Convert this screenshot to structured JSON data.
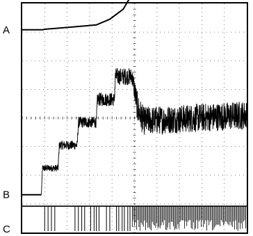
{
  "chart_data": {
    "type": "line",
    "title": "",
    "xlabel": "",
    "ylabel": "",
    "grid": true,
    "grid_divisions": {
      "x": 10,
      "y": 8
    },
    "channel_labels": [
      "A",
      "B",
      "C"
    ],
    "series": [
      {
        "name": "A",
        "kind": "ramp",
        "x": [
          0.0,
          0.9,
          1.0,
          1.5,
          3.3,
          3.9,
          4.5,
          5.1,
          10.0
        ],
        "y": [
          6.08,
          6.08,
          6.1,
          6.13,
          6.25,
          6.45,
          6.8,
          7.6,
          7.6
        ]
      },
      {
        "name": "B",
        "kind": "staircase",
        "x": [
          0.0,
          0.85,
          0.9,
          1.6,
          1.65,
          2.45,
          2.5,
          3.3,
          3.35,
          4.1,
          4.15,
          4.9,
          5.15,
          5.4,
          10.0
        ],
        "y": [
          0.32,
          0.32,
          1.25,
          1.25,
          2.05,
          2.05,
          2.85,
          2.85,
          3.65,
          3.65,
          4.45,
          4.45,
          3.3,
          2.9,
          3.1
        ],
        "noise": [
          0.0,
          0.0,
          0.12,
          0.12,
          0.16,
          0.16,
          0.2,
          0.2,
          0.24,
          0.24,
          0.3,
          0.3,
          0.55,
          0.5,
          0.5
        ]
      },
      {
        "name": "C",
        "kind": "pulses",
        "high": -0.08,
        "low": -0.95,
        "sparse_pulses_x": [
          1.0,
          1.15,
          1.3,
          1.45,
          2.35,
          2.5,
          2.65,
          2.78,
          3.05,
          3.2,
          3.3,
          3.42,
          3.75,
          3.9,
          4.2,
          4.3,
          4.45,
          4.55,
          4.7,
          4.8
        ],
        "dense_from_x": 4.9,
        "dense_to_x": 10.0
      }
    ]
  }
}
